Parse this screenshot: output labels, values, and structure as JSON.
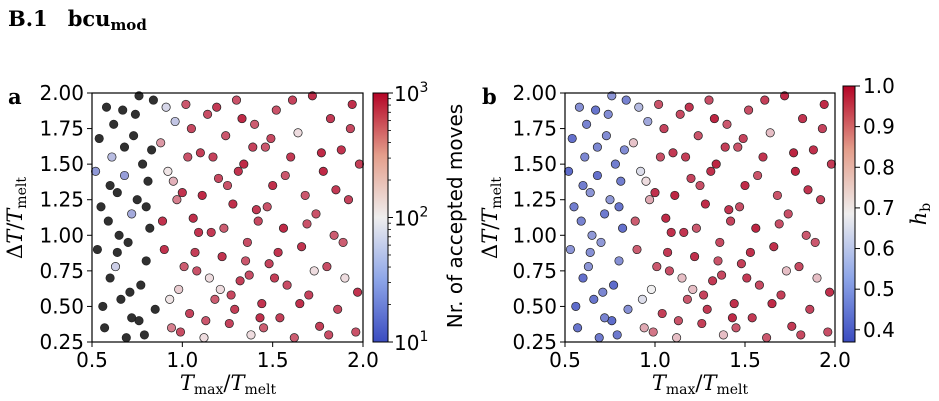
{
  "section": {
    "number": "B.1",
    "name": "bcu",
    "subscript": "mod"
  },
  "panel_a_label": "a",
  "panel_b_label": "b",
  "chart_data": [
    {
      "type": "scatter",
      "panel": "a",
      "title": "",
      "xlabel": "T_max/T_melt",
      "ylabel": "ΔT/T_melt",
      "xlim": [
        0.5,
        2.0
      ],
      "ylim": [
        0.25,
        2.0
      ],
      "xticks": [
        "0.5",
        "1.0",
        "1.5",
        "2.0"
      ],
      "yticks": [
        "0.25",
        "0.50",
        "0.75",
        "1.00",
        "1.25",
        "1.50",
        "1.75",
        "2.00"
      ],
      "grid": false,
      "color_encoding": "Nr. of accepted moves",
      "colorbar": {
        "label": "Nr. of accepted moves",
        "scale": "log",
        "range": [
          10,
          1000
        ],
        "ticks": [
          "10¹",
          "10²",
          "10³"
        ],
        "colormap": [
          "#3b4cc0",
          "#f2f0ef",
          "#b40426"
        ]
      },
      "notes": "Points with x < ~0.85 are mostly black (below color range); x > ~1.0 mostly red (~10^3 accepted moves).",
      "points": [
        [
          0.52,
          1.45
        ],
        [
          0.55,
          1.2
        ],
        [
          0.58,
          1.9
        ],
        [
          0.6,
          0.7
        ],
        [
          0.62,
          1.78
        ],
        [
          0.64,
          1.3
        ],
        [
          0.66,
          0.55
        ],
        [
          0.68,
          1.62
        ],
        [
          0.7,
          0.95
        ],
        [
          0.72,
          1.15
        ],
        [
          0.74,
          1.85
        ],
        [
          0.76,
          0.4
        ],
        [
          0.78,
          1.5
        ],
        [
          0.8,
          0.82
        ],
        [
          0.82,
          1.05
        ],
        [
          0.84,
          1.95
        ],
        [
          0.53,
          0.9
        ],
        [
          0.57,
          0.35
        ],
        [
          0.61,
          1.55
        ],
        [
          0.65,
          1.0
        ],
        [
          0.69,
          0.28
        ],
        [
          0.73,
          1.7
        ],
        [
          0.77,
          0.65
        ],
        [
          0.81,
          1.38
        ],
        [
          0.85,
          0.48
        ],
        [
          0.54,
          1.68
        ],
        [
          0.59,
          1.1
        ],
        [
          0.63,
          0.78
        ],
        [
          0.67,
          1.88
        ],
        [
          0.71,
          0.6
        ],
        [
          0.75,
          1.25
        ],
        [
          0.79,
          0.3
        ],
        [
          0.83,
          1.6
        ],
        [
          0.56,
          0.5
        ],
        [
          0.6,
          1.35
        ],
        [
          0.64,
          0.88
        ],
        [
          0.68,
          1.42
        ],
        [
          0.72,
          0.42
        ],
        [
          0.76,
          1.98
        ],
        [
          0.8,
          1.2
        ],
        [
          0.88,
          1.65
        ],
        [
          0.9,
          0.9
        ],
        [
          0.92,
          1.45
        ],
        [
          0.94,
          0.35
        ],
        [
          0.96,
          1.8
        ],
        [
          0.98,
          0.62
        ],
        [
          1.0,
          1.3
        ],
        [
          1.02,
          1.92
        ],
        [
          1.04,
          0.45
        ],
        [
          1.06,
          1.12
        ],
        [
          1.08,
          0.75
        ],
        [
          1.1,
          1.58
        ],
        [
          1.12,
          0.28
        ],
        [
          1.14,
          1.85
        ],
        [
          1.16,
          1.02
        ],
        [
          1.18,
          0.55
        ],
        [
          1.2,
          1.4
        ],
        [
          1.22,
          0.85
        ],
        [
          1.24,
          1.7
        ],
        [
          1.26,
          0.38
        ],
        [
          1.28,
          1.22
        ],
        [
          1.3,
          1.95
        ],
        [
          1.32,
          0.68
        ],
        [
          1.34,
          1.5
        ],
        [
          1.36,
          0.95
        ],
        [
          1.38,
          0.3
        ],
        [
          1.4,
          1.78
        ],
        [
          1.42,
          1.1
        ],
        [
          1.44,
          0.52
        ],
        [
          1.46,
          1.62
        ],
        [
          1.48,
          0.8
        ],
        [
          1.5,
          1.35
        ],
        [
          1.52,
          1.88
        ],
        [
          1.54,
          0.42
        ],
        [
          1.56,
          1.05
        ],
        [
          1.58,
          0.65
        ],
        [
          1.6,
          1.55
        ],
        [
          1.62,
          0.28
        ],
        [
          1.64,
          1.72
        ],
        [
          1.66,
          0.92
        ],
        [
          1.68,
          1.28
        ],
        [
          1.7,
          0.58
        ],
        [
          1.72,
          1.98
        ],
        [
          1.74,
          1.15
        ],
        [
          1.76,
          0.36
        ],
        [
          1.78,
          1.45
        ],
        [
          1.8,
          0.78
        ],
        [
          1.82,
          1.82
        ],
        [
          1.84,
          1.0
        ],
        [
          1.86,
          0.48
        ],
        [
          1.88,
          1.6
        ],
        [
          1.9,
          0.7
        ],
        [
          1.92,
          1.25
        ],
        [
          1.94,
          1.92
        ],
        [
          1.96,
          0.32
        ],
        [
          1.98,
          1.5
        ],
        [
          0.89,
          1.1
        ],
        [
          0.93,
          0.55
        ],
        [
          0.97,
          1.25
        ],
        [
          1.01,
          0.78
        ],
        [
          1.05,
          1.75
        ],
        [
          1.09,
          1.02
        ],
        [
          1.13,
          0.4
        ],
        [
          1.17,
          1.55
        ],
        [
          1.21,
          0.62
        ],
        [
          1.25,
          1.35
        ],
        [
          1.29,
          0.48
        ],
        [
          1.33,
          1.82
        ],
        [
          1.37,
          0.72
        ],
        [
          1.41,
          1.18
        ],
        [
          1.45,
          0.35
        ],
        [
          1.49,
          1.68
        ],
        [
          1.53,
          0.88
        ],
        [
          1.57,
          1.42
        ],
        [
          1.61,
          1.95
        ],
        [
          1.65,
          0.52
        ],
        [
          1.69,
          1.08
        ],
        [
          1.73,
          0.75
        ],
        [
          1.77,
          1.58
        ],
        [
          1.81,
          0.3
        ],
        [
          1.85,
          1.32
        ],
        [
          1.89,
          0.95
        ],
        [
          1.93,
          1.75
        ],
        [
          1.97,
          0.6
        ],
        [
          0.91,
          1.9
        ],
        [
          0.95,
          1.38
        ],
        [
          0.99,
          0.32
        ],
        [
          1.03,
          1.55
        ],
        [
          1.07,
          0.88
        ],
        [
          1.11,
          1.28
        ],
        [
          1.15,
          0.7
        ],
        [
          1.19,
          1.9
        ],
        [
          1.23,
          1.05
        ],
        [
          1.27,
          0.58
        ],
        [
          1.31,
          1.45
        ],
        [
          1.35,
          0.82
        ],
        [
          1.39,
          1.62
        ],
        [
          1.43,
          0.42
        ],
        [
          1.47,
          1.2
        ],
        [
          1.51,
          0.7
        ]
      ]
    },
    {
      "type": "scatter",
      "panel": "b",
      "title": "",
      "xlabel": "T_max/T_melt",
      "ylabel": "ΔT/T_melt",
      "xlim": [
        0.5,
        2.0
      ],
      "ylim": [
        0.25,
        2.0
      ],
      "xticks": [
        "0.5",
        "1.0",
        "1.5",
        "2.0"
      ],
      "yticks": [
        "0.25",
        "0.50",
        "0.75",
        "1.00",
        "1.25",
        "1.50",
        "1.75",
        "2.00"
      ],
      "grid": false,
      "color_encoding": "h_b",
      "colorbar": {
        "label": "h_b",
        "scale": "linear",
        "range": [
          0.37,
          1.0
        ],
        "ticks": [
          "0.4",
          "0.5",
          "0.6",
          "0.7",
          "0.8",
          "0.9",
          "1.0"
        ],
        "colormap": [
          "#3b4cc0",
          "#f2f0ef",
          "#b40426"
        ]
      },
      "notes": "Points with x < ~0.9 are blue (h_b ≈ 0.4); x > ~1.0 red (h_b ≈ 0.95).",
      "points": [
        [
          0.52,
          1.45
        ],
        [
          0.55,
          1.2
        ],
        [
          0.58,
          1.9
        ],
        [
          0.6,
          0.7
        ],
        [
          0.62,
          1.78
        ],
        [
          0.64,
          1.3
        ],
        [
          0.66,
          0.55
        ],
        [
          0.68,
          1.62
        ],
        [
          0.7,
          0.95
        ],
        [
          0.72,
          1.15
        ],
        [
          0.74,
          1.85
        ],
        [
          0.76,
          0.4
        ],
        [
          0.78,
          1.5
        ],
        [
          0.8,
          0.82
        ],
        [
          0.82,
          1.05
        ],
        [
          0.84,
          1.95
        ],
        [
          0.53,
          0.9
        ],
        [
          0.57,
          0.35
        ],
        [
          0.61,
          1.55
        ],
        [
          0.65,
          1.0
        ],
        [
          0.69,
          0.28
        ],
        [
          0.73,
          1.7
        ],
        [
          0.77,
          0.65
        ],
        [
          0.81,
          1.38
        ],
        [
          0.85,
          0.48
        ],
        [
          0.54,
          1.68
        ],
        [
          0.59,
          1.1
        ],
        [
          0.63,
          0.78
        ],
        [
          0.67,
          1.88
        ],
        [
          0.71,
          0.6
        ],
        [
          0.75,
          1.25
        ],
        [
          0.79,
          0.3
        ],
        [
          0.83,
          1.6
        ],
        [
          0.56,
          0.5
        ],
        [
          0.6,
          1.35
        ],
        [
          0.64,
          0.88
        ],
        [
          0.68,
          1.42
        ],
        [
          0.72,
          0.42
        ],
        [
          0.76,
          1.98
        ],
        [
          0.8,
          1.2
        ],
        [
          0.88,
          1.65
        ],
        [
          0.9,
          0.9
        ],
        [
          0.92,
          1.45
        ],
        [
          0.94,
          0.35
        ],
        [
          0.96,
          1.8
        ],
        [
          0.98,
          0.62
        ],
        [
          1.0,
          1.3
        ],
        [
          1.02,
          1.92
        ],
        [
          1.04,
          0.45
        ],
        [
          1.06,
          1.12
        ],
        [
          1.08,
          0.75
        ],
        [
          1.1,
          1.58
        ],
        [
          1.12,
          0.28
        ],
        [
          1.14,
          1.85
        ],
        [
          1.16,
          1.02
        ],
        [
          1.18,
          0.55
        ],
        [
          1.2,
          1.4
        ],
        [
          1.22,
          0.85
        ],
        [
          1.24,
          1.7
        ],
        [
          1.26,
          0.38
        ],
        [
          1.28,
          1.22
        ],
        [
          1.3,
          1.95
        ],
        [
          1.32,
          0.68
        ],
        [
          1.34,
          1.5
        ],
        [
          1.36,
          0.95
        ],
        [
          1.38,
          0.3
        ],
        [
          1.4,
          1.78
        ],
        [
          1.42,
          1.1
        ],
        [
          1.44,
          0.52
        ],
        [
          1.46,
          1.62
        ],
        [
          1.48,
          0.8
        ],
        [
          1.5,
          1.35
        ],
        [
          1.52,
          1.88
        ],
        [
          1.54,
          0.42
        ],
        [
          1.56,
          1.05
        ],
        [
          1.58,
          0.65
        ],
        [
          1.6,
          1.55
        ],
        [
          1.62,
          0.28
        ],
        [
          1.64,
          1.72
        ],
        [
          1.66,
          0.92
        ],
        [
          1.68,
          1.28
        ],
        [
          1.7,
          0.58
        ],
        [
          1.72,
          1.98
        ],
        [
          1.74,
          1.15
        ],
        [
          1.76,
          0.36
        ],
        [
          1.78,
          1.45
        ],
        [
          1.8,
          0.78
        ],
        [
          1.82,
          1.82
        ],
        [
          1.84,
          1.0
        ],
        [
          1.86,
          0.48
        ],
        [
          1.88,
          1.6
        ],
        [
          1.9,
          0.7
        ],
        [
          1.92,
          1.25
        ],
        [
          1.94,
          1.92
        ],
        [
          1.96,
          0.32
        ],
        [
          1.98,
          1.5
        ],
        [
          0.89,
          1.1
        ],
        [
          0.93,
          0.55
        ],
        [
          0.97,
          1.25
        ],
        [
          1.01,
          0.78
        ],
        [
          1.05,
          1.75
        ],
        [
          1.09,
          1.02
        ],
        [
          1.13,
          0.4
        ],
        [
          1.17,
          1.55
        ],
        [
          1.21,
          0.62
        ],
        [
          1.25,
          1.35
        ],
        [
          1.29,
          0.48
        ],
        [
          1.33,
          1.82
        ],
        [
          1.37,
          0.72
        ],
        [
          1.41,
          1.18
        ],
        [
          1.45,
          0.35
        ],
        [
          1.49,
          1.68
        ],
        [
          1.53,
          0.88
        ],
        [
          1.57,
          1.42
        ],
        [
          1.61,
          1.95
        ],
        [
          1.65,
          0.52
        ],
        [
          1.69,
          1.08
        ],
        [
          1.73,
          0.75
        ],
        [
          1.77,
          1.58
        ],
        [
          1.81,
          0.3
        ],
        [
          1.85,
          1.32
        ],
        [
          1.89,
          0.95
        ],
        [
          1.93,
          1.75
        ],
        [
          1.97,
          0.6
        ],
        [
          0.91,
          1.9
        ],
        [
          0.95,
          1.38
        ],
        [
          0.99,
          0.32
        ],
        [
          1.03,
          1.55
        ],
        [
          1.07,
          0.88
        ],
        [
          1.11,
          1.28
        ],
        [
          1.15,
          0.7
        ],
        [
          1.19,
          1.9
        ],
        [
          1.23,
          1.05
        ],
        [
          1.27,
          0.58
        ],
        [
          1.31,
          1.45
        ],
        [
          1.35,
          0.82
        ],
        [
          1.39,
          1.62
        ],
        [
          1.43,
          0.42
        ],
        [
          1.47,
          1.2
        ],
        [
          1.51,
          0.7
        ]
      ]
    }
  ]
}
